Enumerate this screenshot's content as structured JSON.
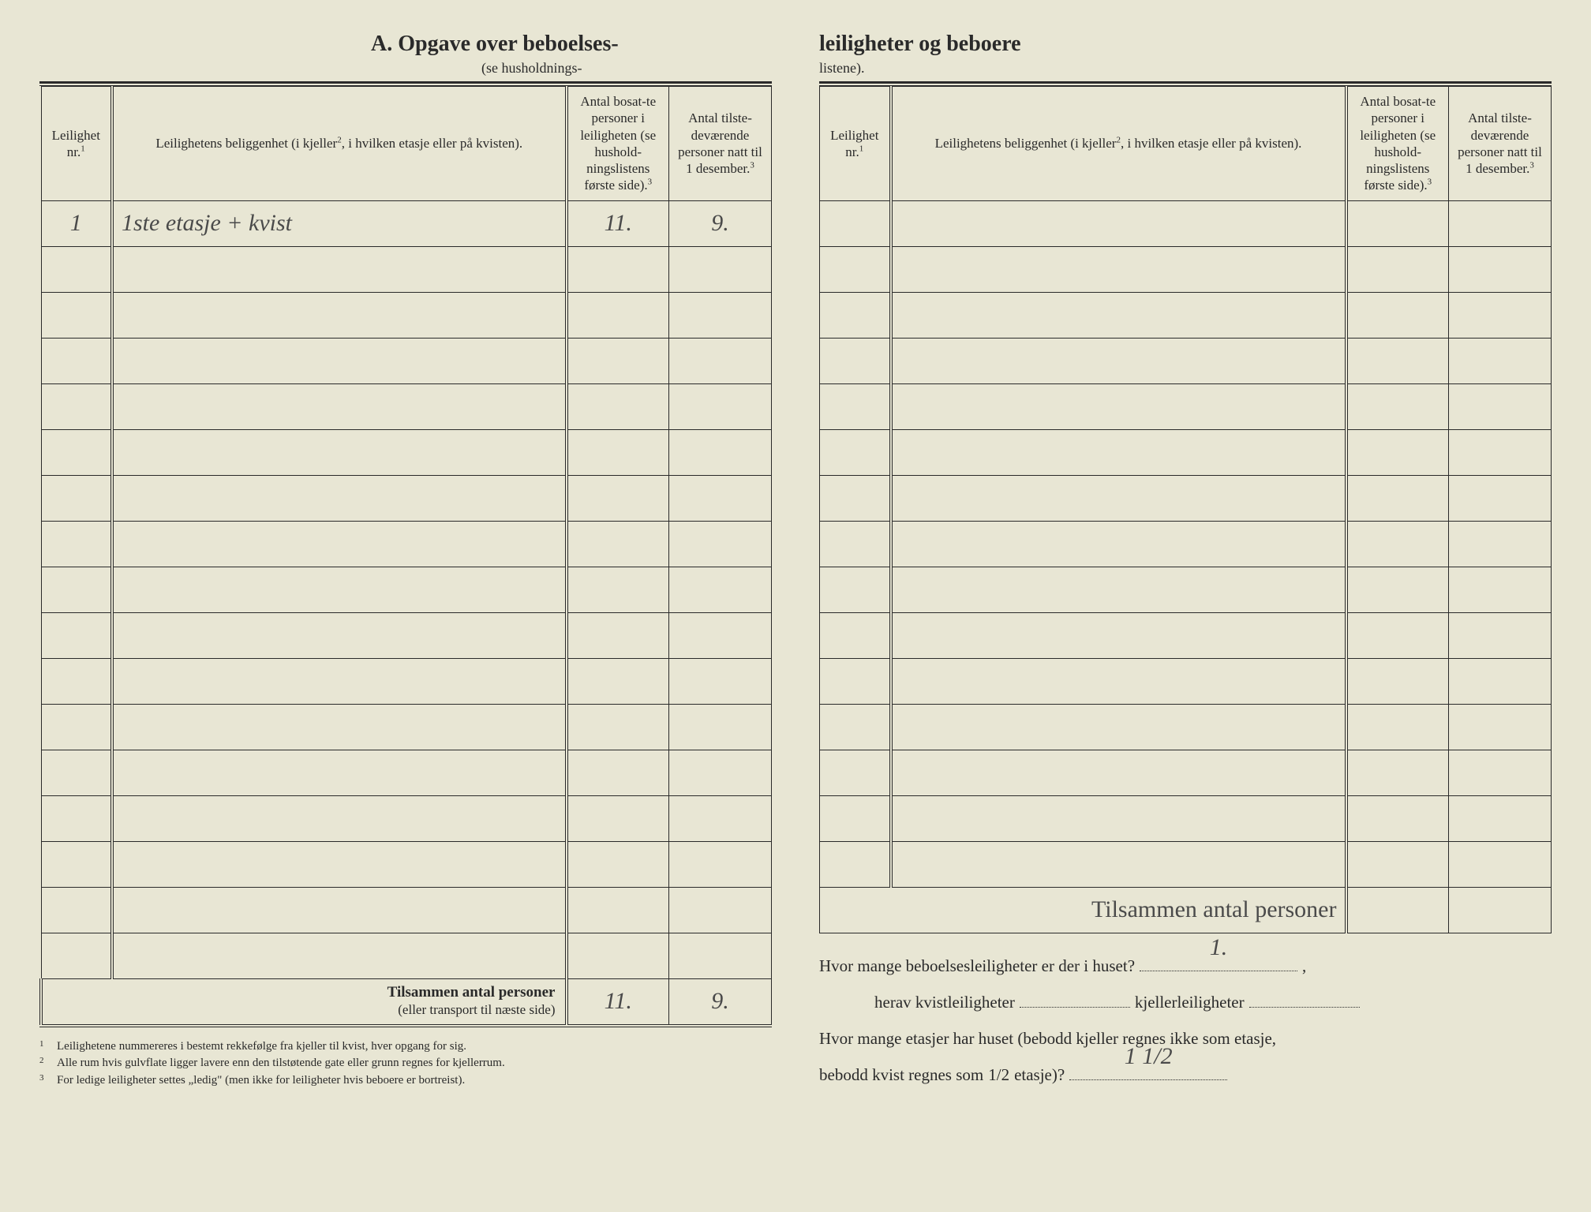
{
  "titleLeft": "A.  Opgave over beboelses-",
  "titleRight": "leiligheter og beboere",
  "subtitleLeft": "(se husholdnings-",
  "subtitleRight": "listene).",
  "headers": {
    "nr": "Leilighet nr.",
    "nrSup": "1",
    "loc": "Leilighetens beliggenhet (i kjeller",
    "locSup": "2",
    "locTail": ", i hvilken etasje eller på kvisten).",
    "n1a": "Antal bosat-te personer i leiligheten (se hushold-ningslistens første side).",
    "n1Sup": "3",
    "n2a": "Antal tilste-deværende personer natt til 1 desember.",
    "n2Sup": "3"
  },
  "row1": {
    "nr": "1",
    "loc": "1ste etasje + kvist",
    "n1": "11.",
    "n2": "9."
  },
  "totals": {
    "labelBold": "Tilsammen antal personer",
    "labelSub": "(eller transport til næste side)",
    "n1": "11.",
    "n2": "9."
  },
  "totalsRight": "Tilsammen antal personer",
  "footnotes": {
    "f1": "Leilighetene nummereres i bestemt rekkefølge fra kjeller til kvist, hver opgang for sig.",
    "f2": "Alle rum hvis gulvflate ligger lavere enn den tilstøtende gate eller grunn regnes for kjellerrum.",
    "f3": "For ledige leiligheter settes „ledig\" (men ikke for leiligheter hvis beboere er bortreist)."
  },
  "questions": {
    "q1": "Hvor mange beboelsesleiligheter er der i huset?",
    "q1ans": "1.",
    "q2a": "herav kvistleiligheter",
    "q2b": "kjellerleiligheter",
    "q3a": "Hvor mange etasjer har huset (bebodd kjeller regnes ikke som etasje,",
    "q3b": "bebodd kvist regnes som",
    "q3half": "1/2",
    "q3c": " etasje)?",
    "q3ans": "1 1/2"
  },
  "numEmptyRows": 16,
  "numEmptyRowsRight": 15,
  "colors": {
    "paper": "#e8e6d4",
    "ink": "#2a2a2a",
    "handwriting": "#4a4a4a"
  },
  "fonts": {
    "print": "Georgia, Times New Roman, serif",
    "hand": "Brush Script MT, cursive",
    "titleSize": 28,
    "headerSize": 17,
    "bodySize": 21,
    "footnoteSize": 15
  }
}
